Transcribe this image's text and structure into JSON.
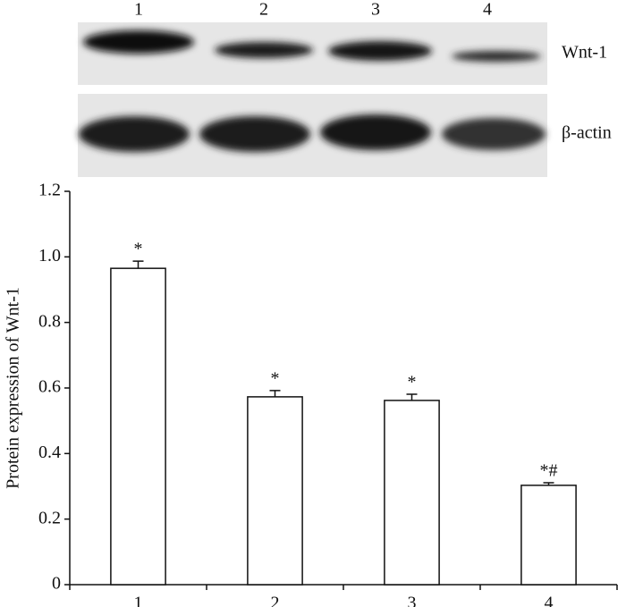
{
  "blot": {
    "lanes": [
      "1",
      "2",
      "3",
      "4"
    ],
    "rows": [
      "Wnt-1",
      "β-actin"
    ]
  },
  "chart_data": {
    "type": "bar",
    "y_label": "Protein expression of Wnt-1",
    "categories": [
      "1",
      "2",
      "3",
      "4"
    ],
    "values": [
      0.965,
      0.573,
      0.562,
      0.303
    ],
    "errors": [
      0.022,
      0.019,
      0.019,
      0.008
    ],
    "annotations": [
      "*",
      "*",
      "*",
      "*#"
    ],
    "color": "#ffffff",
    "ylim": [
      0,
      1.2
    ],
    "yticks": [
      0,
      0.2,
      0.4,
      0.6,
      0.8,
      {
        "value": 1,
        "label": "1.0"
      },
      1.2
    ]
  }
}
